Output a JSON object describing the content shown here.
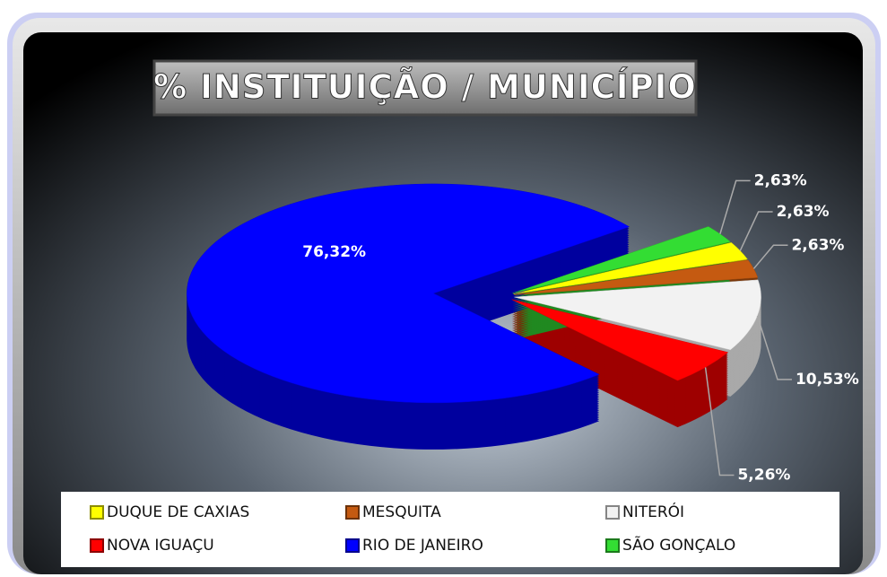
{
  "chart_data": {
    "type": "pie",
    "title": "% INSTITUIÇÃO / MUNICÍPIO",
    "categories": [
      "DUQUE DE CAXIAS",
      "MESQUITA",
      "NITERÓI",
      "NOVA IGUAÇU",
      "RIO DE JANEIRO",
      "SÃO GONÇALO"
    ],
    "values": [
      2.63,
      2.63,
      10.53,
      5.26,
      76.32,
      2.63
    ],
    "value_labels": [
      "2,63%",
      "2,63%",
      "10,53%",
      "5,26%",
      "76,32%",
      "2,63%"
    ],
    "colors": [
      "#ffff00",
      "#c55a11",
      "#f2f2f2",
      "#ff0000",
      "#0000ff",
      "#33dd33"
    ],
    "legend": "bottom"
  }
}
